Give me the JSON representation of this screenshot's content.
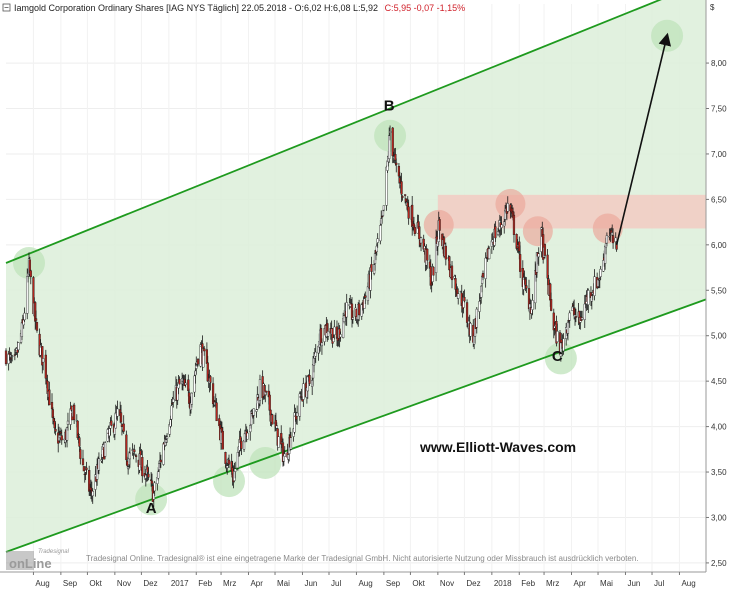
{
  "header": {
    "instrument": "Iamgold Corporation Ordinary Shares [IAG NYS  Täglich] 22.05.2018 - O:6,02 H:6,08 L:5,92",
    "close_change": "C:5,95 -0,07 -1,15%"
  },
  "currency_symbol": "$",
  "watermark": "www.Elliott-Waves.com",
  "disclaimer": "Tradesignal Online. Tradesignal® ist eine eingetragene Marke der Tradesignal GmbH. Nicht autorisierte Nutzung oder Missbrauch ist ausdrücklich verboten.",
  "logo": {
    "small": "Tradesignal",
    "big": "onLine"
  },
  "colors": {
    "channel_line": "#1e9a1e",
    "channel_fill": "#dcefd9",
    "highlight_circle": "#bfe3bb",
    "resistance_zone": "#f4c9c0",
    "resistance_circle": "#eba99d",
    "candle_up": "#ffffff",
    "candle_down": "#b3261e",
    "wick": "#1a1a1a",
    "projection_arrow": "#111111"
  },
  "chart_data": {
    "type": "candlestick",
    "title": "Iamgold Corporation Ordinary Shares [IAG NYS  Täglich]",
    "ylabel": "$",
    "ylim": [
      2.4,
      8.65
    ],
    "y_ticks": [
      "2,50",
      "3,00",
      "3,50",
      "4,00",
      "4,50",
      "5,00",
      "5,50",
      "6,00",
      "6,50",
      "7,00",
      "7,50",
      "8,00"
    ],
    "y_tick_values": [
      2.5,
      3.0,
      3.5,
      4.0,
      4.5,
      5.0,
      5.5,
      6.0,
      6.5,
      7.0,
      7.5,
      8.0
    ],
    "x_range": [
      "2016-07-01",
      "2018-08-31"
    ],
    "x_ticks": [
      {
        "label": "Aug",
        "date": "2016-08-01"
      },
      {
        "label": "Sep",
        "date": "2016-09-01"
      },
      {
        "label": "Okt",
        "date": "2016-10-01"
      },
      {
        "label": "Nov",
        "date": "2016-11-01"
      },
      {
        "label": "Dez",
        "date": "2016-12-01"
      },
      {
        "label": "2017",
        "date": "2017-01-01"
      },
      {
        "label": "Feb",
        "date": "2017-02-01"
      },
      {
        "label": "Mrz",
        "date": "2017-03-01"
      },
      {
        "label": "Apr",
        "date": "2017-04-01"
      },
      {
        "label": "Mai",
        "date": "2017-05-01"
      },
      {
        "label": "Jun",
        "date": "2017-06-01"
      },
      {
        "label": "Jul",
        "date": "2017-07-01"
      },
      {
        "label": "Aug",
        "date": "2017-08-01"
      },
      {
        "label": "Sep",
        "date": "2017-09-01"
      },
      {
        "label": "Okt",
        "date": "2017-10-01"
      },
      {
        "label": "Nov",
        "date": "2017-11-01"
      },
      {
        "label": "Dez",
        "date": "2017-12-01"
      },
      {
        "label": "2018",
        "date": "2018-01-01"
      },
      {
        "label": "Feb",
        "date": "2018-02-01"
      },
      {
        "label": "Mrz",
        "date": "2018-03-01"
      },
      {
        "label": "Apr",
        "date": "2018-04-01"
      },
      {
        "label": "Mai",
        "date": "2018-05-01"
      },
      {
        "label": "Jun",
        "date": "2018-06-01"
      },
      {
        "label": "Jul",
        "date": "2018-07-01"
      },
      {
        "label": "Aug",
        "date": "2018-08-01"
      }
    ],
    "price_path": [
      [
        "2016-07-01",
        4.8
      ],
      [
        "2016-07-10",
        4.65
      ],
      [
        "2016-07-20",
        5.1
      ],
      [
        "2016-07-27",
        5.75
      ],
      [
        "2016-08-05",
        5.0
      ],
      [
        "2016-08-15",
        4.6
      ],
      [
        "2016-08-25",
        3.9
      ],
      [
        "2016-09-05",
        3.85
      ],
      [
        "2016-09-15",
        4.2
      ],
      [
        "2016-09-25",
        3.6
      ],
      [
        "2016-10-05",
        3.25
      ],
      [
        "2016-10-15",
        3.6
      ],
      [
        "2016-10-25",
        3.9
      ],
      [
        "2016-11-05",
        4.15
      ],
      [
        "2016-11-15",
        3.65
      ],
      [
        "2016-11-25",
        3.7
      ],
      [
        "2016-12-05",
        3.5
      ],
      [
        "2016-12-15",
        3.25
      ],
      [
        "2016-12-25",
        3.75
      ],
      [
        "2017-01-05",
        4.25
      ],
      [
        "2017-01-15",
        4.5
      ],
      [
        "2017-01-25",
        4.3
      ],
      [
        "2017-02-05",
        4.9
      ],
      [
        "2017-02-15",
        4.55
      ],
      [
        "2017-02-25",
        4.1
      ],
      [
        "2017-03-05",
        3.7
      ],
      [
        "2017-03-15",
        3.45
      ],
      [
        "2017-03-25",
        3.9
      ],
      [
        "2017-04-05",
        4.1
      ],
      [
        "2017-04-15",
        4.45
      ],
      [
        "2017-04-25",
        4.2
      ],
      [
        "2017-05-05",
        3.85
      ],
      [
        "2017-05-12",
        3.65
      ],
      [
        "2017-05-20",
        3.95
      ],
      [
        "2017-05-31",
        4.35
      ],
      [
        "2017-06-10",
        4.5
      ],
      [
        "2017-06-20",
        5.0
      ],
      [
        "2017-06-30",
        5.1
      ],
      [
        "2017-07-10",
        4.95
      ],
      [
        "2017-07-20",
        5.3
      ],
      [
        "2017-07-31",
        5.2
      ],
      [
        "2017-08-10",
        5.4
      ],
      [
        "2017-08-20",
        5.75
      ],
      [
        "2017-08-31",
        6.3
      ],
      [
        "2017-09-08",
        7.25
      ],
      [
        "2017-09-15",
        6.8
      ],
      [
        "2017-09-25",
        6.5
      ],
      [
        "2017-10-05",
        6.25
      ],
      [
        "2017-10-15",
        6.0
      ],
      [
        "2017-10-25",
        5.6
      ],
      [
        "2017-11-02",
        6.2
      ],
      [
        "2017-11-10",
        5.9
      ],
      [
        "2017-11-20",
        5.6
      ],
      [
        "2017-11-30",
        5.35
      ],
      [
        "2017-12-10",
        4.95
      ],
      [
        "2017-12-20",
        5.5
      ],
      [
        "2017-12-31",
        6.05
      ],
      [
        "2018-01-10",
        6.2
      ],
      [
        "2018-01-20",
        6.45
      ],
      [
        "2018-01-28",
        6.1
      ],
      [
        "2018-02-05",
        5.6
      ],
      [
        "2018-02-15",
        5.3
      ],
      [
        "2018-02-25",
        6.15
      ],
      [
        "2018-03-05",
        5.6
      ],
      [
        "2018-03-12",
        5.1
      ],
      [
        "2018-03-20",
        4.85
      ],
      [
        "2018-03-31",
        5.3
      ],
      [
        "2018-04-10",
        5.15
      ],
      [
        "2018-04-20",
        5.45
      ],
      [
        "2018-04-30",
        5.6
      ],
      [
        "2018-05-05",
        5.7
      ],
      [
        "2018-05-12",
        6.2
      ],
      [
        "2018-05-17",
        6.05
      ],
      [
        "2018-05-22",
        5.95
      ]
    ],
    "last_bar": {
      "date": "2018-05-22",
      "open": 6.02,
      "high": 6.08,
      "low": 5.92,
      "close": 5.95,
      "change": -0.07,
      "change_pct": -1.15
    },
    "channel": {
      "upper": [
        [
          "2016-07-01",
          5.8
        ],
        [
          "2018-08-31",
          8.9
        ]
      ],
      "lower": [
        [
          "2016-07-01",
          2.62
        ],
        [
          "2018-08-31",
          5.4
        ]
      ]
    },
    "resistance_zone": {
      "from": "2017-11-01",
      "to": "2018-08-31",
      "y_low": 6.18,
      "y_high": 6.55
    },
    "wave_labels": [
      {
        "label": "A",
        "date": "2016-12-12",
        "price": 3.05
      },
      {
        "label": "B",
        "date": "2017-09-07",
        "price": 7.48
      },
      {
        "label": "C",
        "date": "2018-03-16",
        "price": 4.72
      }
    ],
    "support_touches": [
      {
        "date": "2016-07-27",
        "price": 5.8
      },
      {
        "date": "2016-12-12",
        "price": 3.2
      },
      {
        "date": "2017-03-10",
        "price": 3.4
      },
      {
        "date": "2017-04-20",
        "price": 3.6
      },
      {
        "date": "2017-09-08",
        "price": 7.2
      },
      {
        "date": "2018-03-20",
        "price": 4.75
      },
      {
        "date": "2018-07-18",
        "price": 8.3
      }
    ],
    "resistance_touches": [
      {
        "date": "2017-11-02",
        "price": 6.22
      },
      {
        "date": "2018-01-22",
        "price": 6.45
      },
      {
        "date": "2018-02-22",
        "price": 6.15
      },
      {
        "date": "2018-05-12",
        "price": 6.18
      }
    ],
    "projection": {
      "from": [
        "2018-05-22",
        6.0
      ],
      "to": [
        "2018-07-18",
        8.3
      ]
    }
  }
}
